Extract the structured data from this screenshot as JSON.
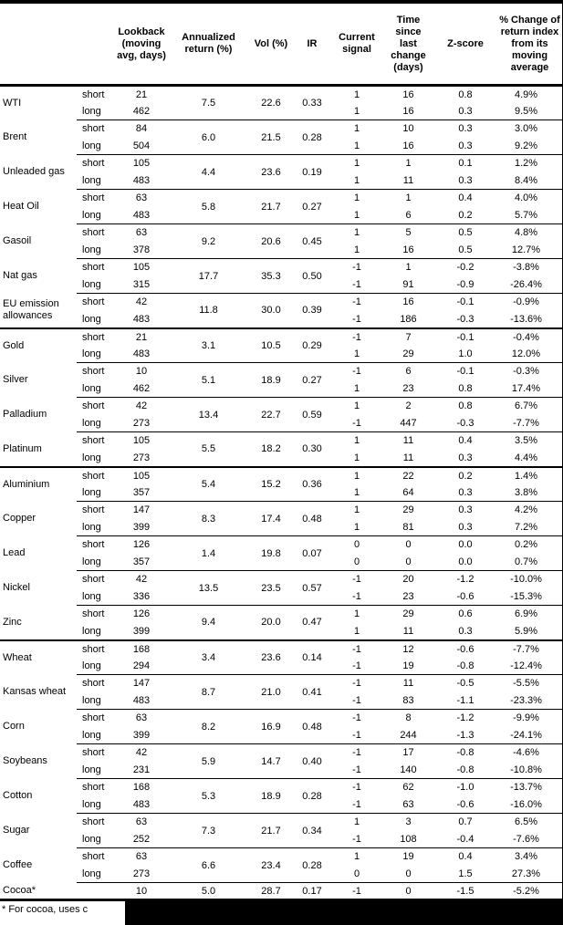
{
  "table": {
    "columns": [
      {
        "key": "name",
        "label": ""
      },
      {
        "key": "pos",
        "label": ""
      },
      {
        "key": "lookback",
        "label": "Lookback\n(moving\navg, days)"
      },
      {
        "key": "annualized",
        "label": "Annualized\nreturn (%)"
      },
      {
        "key": "vol",
        "label": "Vol (%)"
      },
      {
        "key": "ir",
        "label": "IR"
      },
      {
        "key": "signal",
        "label": "Current\nsignal"
      },
      {
        "key": "time",
        "label": "Time since\nlast change\n(days)"
      },
      {
        "key": "zscore",
        "label": "Z-score"
      },
      {
        "key": "pct",
        "label": "% Change of\nreturn index\nfrom its\nmoving\naverage"
      }
    ],
    "groups": [
      {
        "name": "WTI",
        "section_start": false,
        "annualized": "7.5",
        "vol": "22.6",
        "ir": "0.33",
        "rows": [
          {
            "pos": "short",
            "lookback": "21",
            "signal": "1",
            "time": "16",
            "zscore": "0.8",
            "pct": "4.9%"
          },
          {
            "pos": "long",
            "lookback": "462",
            "signal": "1",
            "time": "16",
            "zscore": "0.3",
            "pct": "9.5%"
          }
        ]
      },
      {
        "name": "Brent",
        "section_start": false,
        "annualized": "6.0",
        "vol": "21.5",
        "ir": "0.28",
        "rows": [
          {
            "pos": "short",
            "lookback": "84",
            "signal": "1",
            "time": "10",
            "zscore": "0.3",
            "pct": "3.0%"
          },
          {
            "pos": "long",
            "lookback": "504",
            "signal": "1",
            "time": "16",
            "zscore": "0.3",
            "pct": "9.2%"
          }
        ]
      },
      {
        "name": "Unleaded gas",
        "section_start": false,
        "annualized": "4.4",
        "vol": "23.6",
        "ir": "0.19",
        "rows": [
          {
            "pos": "short",
            "lookback": "105",
            "signal": "1",
            "time": "1",
            "zscore": "0.1",
            "pct": "1.2%"
          },
          {
            "pos": "long",
            "lookback": "483",
            "signal": "1",
            "time": "11",
            "zscore": "0.3",
            "pct": "8.4%"
          }
        ]
      },
      {
        "name": "Heat Oil",
        "section_start": false,
        "annualized": "5.8",
        "vol": "21.7",
        "ir": "0.27",
        "rows": [
          {
            "pos": "short",
            "lookback": "63",
            "signal": "1",
            "time": "1",
            "zscore": "0.4",
            "pct": "4.0%"
          },
          {
            "pos": "long",
            "lookback": "483",
            "signal": "1",
            "time": "6",
            "zscore": "0.2",
            "pct": "5.7%"
          }
        ]
      },
      {
        "name": "Gasoil",
        "section_start": false,
        "annualized": "9.2",
        "vol": "20.6",
        "ir": "0.45",
        "rows": [
          {
            "pos": "short",
            "lookback": "63",
            "signal": "1",
            "time": "5",
            "zscore": "0.5",
            "pct": "4.8%"
          },
          {
            "pos": "long",
            "lookback": "378",
            "signal": "1",
            "time": "16",
            "zscore": "0.5",
            "pct": "12.7%"
          }
        ]
      },
      {
        "name": "Nat gas",
        "section_start": false,
        "annualized": "17.7",
        "vol": "35.3",
        "ir": "0.50",
        "rows": [
          {
            "pos": "short",
            "lookback": "105",
            "signal": "-1",
            "time": "1",
            "zscore": "-0.2",
            "pct": "-3.8%"
          },
          {
            "pos": "long",
            "lookback": "315",
            "signal": "-1",
            "time": "91",
            "zscore": "-0.9",
            "pct": "-26.4%"
          }
        ]
      },
      {
        "name": "EU emission allowances",
        "section_start": false,
        "annualized": "11.8",
        "vol": "30.0",
        "ir": "0.39",
        "rows": [
          {
            "pos": "short",
            "lookback": "42",
            "signal": "-1",
            "time": "16",
            "zscore": "-0.1",
            "pct": "-0.9%"
          },
          {
            "pos": "long",
            "lookback": "483",
            "signal": "-1",
            "time": "186",
            "zscore": "-0.3",
            "pct": "-13.6%"
          }
        ]
      },
      {
        "name": "Gold",
        "section_start": true,
        "annualized": "3.1",
        "vol": "10.5",
        "ir": "0.29",
        "rows": [
          {
            "pos": "short",
            "lookback": "21",
            "signal": "-1",
            "time": "7",
            "zscore": "-0.1",
            "pct": "-0.4%"
          },
          {
            "pos": "long",
            "lookback": "483",
            "signal": "1",
            "time": "29",
            "zscore": "1.0",
            "pct": "12.0%"
          }
        ]
      },
      {
        "name": "Silver",
        "section_start": false,
        "annualized": "5.1",
        "vol": "18.9",
        "ir": "0.27",
        "rows": [
          {
            "pos": "short",
            "lookback": "10",
            "signal": "-1",
            "time": "6",
            "zscore": "-0.1",
            "pct": "-0.3%"
          },
          {
            "pos": "long",
            "lookback": "462",
            "signal": "1",
            "time": "23",
            "zscore": "0.8",
            "pct": "17.4%"
          }
        ]
      },
      {
        "name": "Palladium",
        "section_start": false,
        "annualized": "13.4",
        "vol": "22.7",
        "ir": "0.59",
        "rows": [
          {
            "pos": "short",
            "lookback": "42",
            "signal": "1",
            "time": "2",
            "zscore": "0.8",
            "pct": "6.7%"
          },
          {
            "pos": "long",
            "lookback": "273",
            "signal": "-1",
            "time": "447",
            "zscore": "-0.3",
            "pct": "-7.7%"
          }
        ]
      },
      {
        "name": "Platinum",
        "section_start": false,
        "annualized": "5.5",
        "vol": "18.2",
        "ir": "0.30",
        "rows": [
          {
            "pos": "short",
            "lookback": "105",
            "signal": "1",
            "time": "11",
            "zscore": "0.4",
            "pct": "3.5%"
          },
          {
            "pos": "long",
            "lookback": "273",
            "signal": "1",
            "time": "11",
            "zscore": "0.3",
            "pct": "4.4%"
          }
        ]
      },
      {
        "name": "Aluminium",
        "section_start": true,
        "annualized": "5.4",
        "vol": "15.2",
        "ir": "0.36",
        "rows": [
          {
            "pos": "short",
            "lookback": "105",
            "signal": "1",
            "time": "22",
            "zscore": "0.2",
            "pct": "1.4%"
          },
          {
            "pos": "long",
            "lookback": "357",
            "signal": "1",
            "time": "64",
            "zscore": "0.3",
            "pct": "3.8%"
          }
        ]
      },
      {
        "name": "Copper",
        "section_start": false,
        "annualized": "8.3",
        "vol": "17.4",
        "ir": "0.48",
        "rows": [
          {
            "pos": "short",
            "lookback": "147",
            "signal": "1",
            "time": "29",
            "zscore": "0.3",
            "pct": "4.2%"
          },
          {
            "pos": "long",
            "lookback": "399",
            "signal": "1",
            "time": "81",
            "zscore": "0.3",
            "pct": "7.2%"
          }
        ]
      },
      {
        "name": "Lead",
        "section_start": false,
        "annualized": "1.4",
        "vol": "19.8",
        "ir": "0.07",
        "rows": [
          {
            "pos": "short",
            "lookback": "126",
            "signal": "0",
            "time": "0",
            "zscore": "0.0",
            "pct": "0.2%"
          },
          {
            "pos": "long",
            "lookback": "357",
            "signal": "0",
            "time": "0",
            "zscore": "0.0",
            "pct": "0.7%"
          }
        ]
      },
      {
        "name": "Nickel",
        "section_start": false,
        "annualized": "13.5",
        "vol": "23.5",
        "ir": "0.57",
        "rows": [
          {
            "pos": "short",
            "lookback": "42",
            "signal": "-1",
            "time": "20",
            "zscore": "-1.2",
            "pct": "-10.0%"
          },
          {
            "pos": "long",
            "lookback": "336",
            "signal": "-1",
            "time": "23",
            "zscore": "-0.6",
            "pct": "-15.3%"
          }
        ]
      },
      {
        "name": "Zinc",
        "section_start": false,
        "annualized": "9.4",
        "vol": "20.0",
        "ir": "0.47",
        "rows": [
          {
            "pos": "short",
            "lookback": "126",
            "signal": "1",
            "time": "29",
            "zscore": "0.6",
            "pct": "6.9%"
          },
          {
            "pos": "long",
            "lookback": "399",
            "signal": "1",
            "time": "11",
            "zscore": "0.3",
            "pct": "5.9%"
          }
        ]
      },
      {
        "name": "Wheat",
        "section_start": true,
        "annualized": "3.4",
        "vol": "23.6",
        "ir": "0.14",
        "rows": [
          {
            "pos": "short",
            "lookback": "168",
            "signal": "-1",
            "time": "12",
            "zscore": "-0.6",
            "pct": "-7.7%"
          },
          {
            "pos": "long",
            "lookback": "294",
            "signal": "-1",
            "time": "19",
            "zscore": "-0.8",
            "pct": "-12.4%"
          }
        ]
      },
      {
        "name": "Kansas wheat",
        "section_start": false,
        "annualized": "8.7",
        "vol": "21.0",
        "ir": "0.41",
        "rows": [
          {
            "pos": "short",
            "lookback": "147",
            "signal": "-1",
            "time": "11",
            "zscore": "-0.5",
            "pct": "-5.5%"
          },
          {
            "pos": "long",
            "lookback": "483",
            "signal": "-1",
            "time": "83",
            "zscore": "-1.1",
            "pct": "-23.3%"
          }
        ]
      },
      {
        "name": "Corn",
        "section_start": false,
        "annualized": "8.2",
        "vol": "16.9",
        "ir": "0.48",
        "rows": [
          {
            "pos": "short",
            "lookback": "63",
            "signal": "-1",
            "time": "8",
            "zscore": "-1.2",
            "pct": "-9.9%"
          },
          {
            "pos": "long",
            "lookback": "399",
            "signal": "-1",
            "time": "244",
            "zscore": "-1.3",
            "pct": "-24.1%"
          }
        ]
      },
      {
        "name": "Soybeans",
        "section_start": false,
        "annualized": "5.9",
        "vol": "14.7",
        "ir": "0.40",
        "rows": [
          {
            "pos": "short",
            "lookback": "42",
            "signal": "-1",
            "time": "17",
            "zscore": "-0.8",
            "pct": "-4.6%"
          },
          {
            "pos": "long",
            "lookback": "231",
            "signal": "-1",
            "time": "140",
            "zscore": "-0.8",
            "pct": "-10.8%"
          }
        ]
      },
      {
        "name": "Cotton",
        "section_start": false,
        "annualized": "5.3",
        "vol": "18.9",
        "ir": "0.28",
        "rows": [
          {
            "pos": "short",
            "lookback": "168",
            "signal": "-1",
            "time": "62",
            "zscore": "-1.0",
            "pct": "-13.7%"
          },
          {
            "pos": "long",
            "lookback": "483",
            "signal": "-1",
            "time": "63",
            "zscore": "-0.6",
            "pct": "-16.0%"
          }
        ]
      },
      {
        "name": "Sugar",
        "section_start": false,
        "annualized": "7.3",
        "vol": "21.7",
        "ir": "0.34",
        "rows": [
          {
            "pos": "short",
            "lookback": "63",
            "signal": "1",
            "time": "3",
            "zscore": "0.7",
            "pct": "6.5%"
          },
          {
            "pos": "long",
            "lookback": "252",
            "signal": "-1",
            "time": "108",
            "zscore": "-0.4",
            "pct": "-7.6%"
          }
        ]
      },
      {
        "name": "Coffee",
        "section_start": false,
        "annualized": "6.6",
        "vol": "23.4",
        "ir": "0.28",
        "rows": [
          {
            "pos": "short",
            "lookback": "63",
            "signal": "1",
            "time": "19",
            "zscore": "0.4",
            "pct": "3.4%"
          },
          {
            "pos": "long",
            "lookback": "273",
            "signal": "0",
            "time": "0",
            "zscore": "1.5",
            "pct": "27.3%"
          }
        ]
      },
      {
        "name": "Cocoa*",
        "section_start": false,
        "annualized": "5.0",
        "vol": "28.7",
        "ir": "0.17",
        "rows": [
          {
            "pos": "",
            "lookback": "10",
            "signal": "-1",
            "time": "0",
            "zscore": "-1.5",
            "pct": "-5.2%"
          }
        ]
      }
    ]
  },
  "footnote": {
    "text": "* For cocoa, uses c"
  }
}
